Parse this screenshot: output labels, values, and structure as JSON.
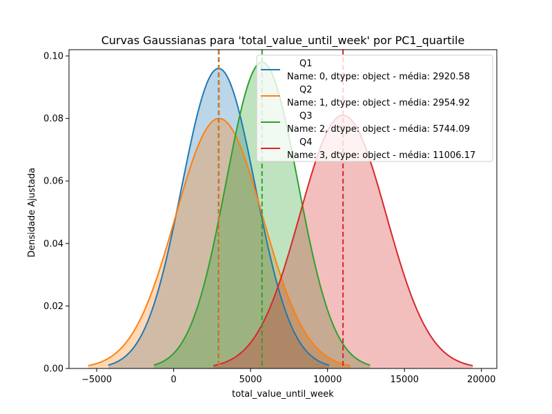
{
  "chart_data": {
    "type": "area",
    "title": "Curvas Gaussianas para 'total_value_until_week' por PC1_quartile",
    "xlabel": "total_value_until_week",
    "ylabel": "Densidade Ajustada",
    "xlim": [
      -6800,
      21000
    ],
    "ylim": [
      0,
      0.102
    ],
    "xticks": [
      -5000,
      0,
      5000,
      10000,
      15000,
      20000
    ],
    "xtick_labels": [
      "−5000",
      "0",
      "5000",
      "10000",
      "15000",
      "20000"
    ],
    "yticks": [
      0.0,
      0.02,
      0.04,
      0.06,
      0.08,
      0.1
    ],
    "ytick_labels": [
      "0.00",
      "0.02",
      "0.04",
      "0.06",
      "0.08",
      "0.10"
    ],
    "grid": false,
    "legend_position": "top-right",
    "series": [
      {
        "name": "Q1",
        "legend_detail": "Name: 0, dtype: object - média: 2920.58",
        "mean": 2920.58,
        "sd": 2390,
        "peak": 0.096,
        "x_range": [
          -4250,
          10100
        ],
        "color": "#1f77b4"
      },
      {
        "name": "Q2",
        "legend_detail": "Name: 1, dtype: object - média: 2954.92",
        "mean": 2954.92,
        "sd": 2840,
        "peak": 0.08,
        "x_range": [
          -5550,
          11500
        ],
        "color": "#ff7f0e"
      },
      {
        "name": "Q3",
        "legend_detail": "Name: 2, dtype: object - média: 5744.09",
        "mean": 5744.09,
        "sd": 2340,
        "peak": 0.098,
        "x_range": [
          -1280,
          12770
        ],
        "color": "#2ca02c"
      },
      {
        "name": "Q4",
        "legend_detail": "Name: 3, dtype: object - média: 11006.17",
        "mean": 11006.17,
        "sd": 2810,
        "peak": 0.081,
        "x_range": [
          2570,
          19440
        ],
        "color": "#d62728"
      }
    ]
  }
}
